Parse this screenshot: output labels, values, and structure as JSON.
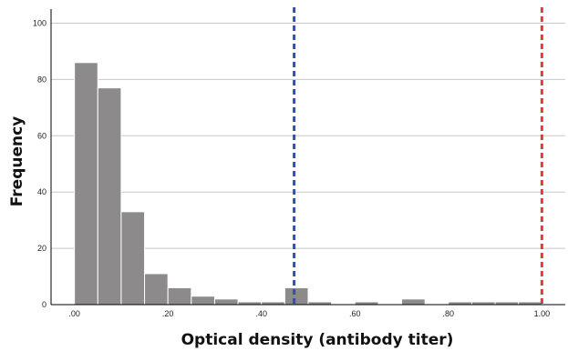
{
  "chart_data": {
    "type": "bar",
    "title": "",
    "xlabel": "Optical density (antibody titer)",
    "ylabel": "Frequency",
    "xlim": [
      -0.05,
      1.05
    ],
    "ylim": [
      0,
      105
    ],
    "bin_width": 0.05,
    "bins": [
      {
        "x0": 0.0,
        "count": 86
      },
      {
        "x0": 0.05,
        "count": 77
      },
      {
        "x0": 0.1,
        "count": 33
      },
      {
        "x0": 0.15,
        "count": 11
      },
      {
        "x0": 0.2,
        "count": 6
      },
      {
        "x0": 0.25,
        "count": 3
      },
      {
        "x0": 0.3,
        "count": 2
      },
      {
        "x0": 0.35,
        "count": 1
      },
      {
        "x0": 0.4,
        "count": 1
      },
      {
        "x0": 0.45,
        "count": 6
      },
      {
        "x0": 0.5,
        "count": 1
      },
      {
        "x0": 0.55,
        "count": 0
      },
      {
        "x0": 0.6,
        "count": 1
      },
      {
        "x0": 0.65,
        "count": 0
      },
      {
        "x0": 0.7,
        "count": 2
      },
      {
        "x0": 0.75,
        "count": 0
      },
      {
        "x0": 0.8,
        "count": 1
      },
      {
        "x0": 0.85,
        "count": 1
      },
      {
        "x0": 0.9,
        "count": 1
      },
      {
        "x0": 0.95,
        "count": 1
      }
    ],
    "x_ticks": [
      {
        "value": 0.0,
        "label": ".00"
      },
      {
        "value": 0.2,
        "label": ".20"
      },
      {
        "value": 0.4,
        "label": ".40"
      },
      {
        "value": 0.6,
        "label": ".60"
      },
      {
        "value": 0.8,
        "label": ".80"
      },
      {
        "value": 1.0,
        "label": "1.00"
      }
    ],
    "y_ticks": [
      0,
      20,
      40,
      60,
      80,
      100
    ],
    "reference_lines": [
      {
        "x": 0.47,
        "color": "#2f4fb5",
        "style": "dashed"
      },
      {
        "x": 1.0,
        "color": "#e03a3a",
        "style": "dashed"
      }
    ],
    "bar_color": "#8c8a8b",
    "grid": true
  }
}
